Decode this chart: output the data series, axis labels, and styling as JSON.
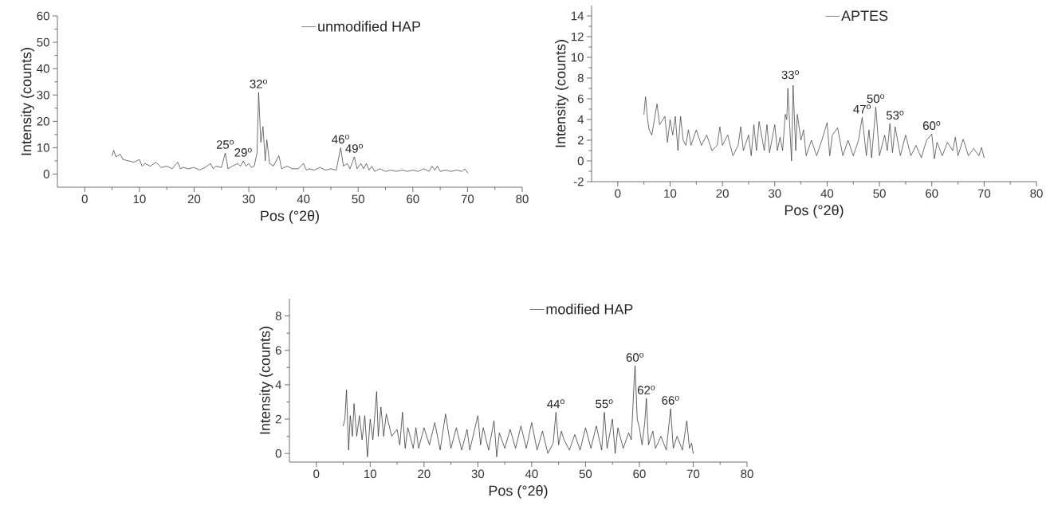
{
  "chart_data": [
    {
      "type": "line",
      "xlabel": "Pos (°2θ)",
      "ylabel": "Intensity (counts)",
      "legend": "top right",
      "xlim": [
        -5,
        80
      ],
      "xticks": [
        0,
        10,
        20,
        30,
        40,
        50,
        60,
        70,
        80
      ],
      "ylim": [
        -5,
        60
      ],
      "yticks": [
        0,
        10,
        20,
        30,
        40,
        50,
        60
      ],
      "x": [
        5,
        5.3,
        5.7,
        6.5,
        7,
        8,
        9,
        10,
        10.5,
        11,
        12,
        13,
        14,
        15,
        16,
        17,
        17.5,
        18,
        19,
        20,
        21,
        22,
        23,
        23.5,
        24,
        25,
        25.7,
        26.2,
        27,
        28,
        28.5,
        29,
        29.5,
        30,
        30.5,
        31,
        31.5,
        31.8,
        32.2,
        32.6,
        33,
        33.3,
        33.8,
        34.5,
        35.5,
        36,
        37,
        38,
        39,
        40,
        40.5,
        41,
        42,
        43,
        44,
        45,
        46,
        46.8,
        47.3,
        48,
        48.5,
        49.3,
        49.8,
        50.5,
        51,
        51.5,
        52,
        52.5,
        53,
        54,
        55,
        56,
        57,
        58,
        59,
        60,
        61,
        62,
        63,
        63.5,
        64,
        64.5,
        65,
        66,
        67,
        68,
        69,
        69.5,
        70
      ],
      "series": [
        {
          "name": "unmodified HAP",
          "color": "#333333",
          "values": [
            7,
            9,
            6.5,
            7.5,
            5.5,
            5,
            4.5,
            5.5,
            3,
            4,
            3,
            4.5,
            2.5,
            3,
            2,
            4.5,
            2,
            2.5,
            2,
            2.5,
            1.5,
            2.5,
            4,
            2,
            3,
            2.5,
            8,
            2,
            3,
            4,
            3,
            5,
            3,
            4,
            2.5,
            3,
            8,
            31,
            12,
            18,
            5,
            13,
            4,
            3,
            7,
            2,
            3,
            2,
            2,
            4,
            1.5,
            2,
            1.5,
            2.5,
            1.5,
            2,
            1.5,
            10,
            3,
            4,
            2,
            6.5,
            2,
            4,
            2,
            4,
            1.5,
            3,
            1,
            2,
            1,
            1.5,
            1,
            1.5,
            1,
            1.5,
            1,
            2,
            1,
            3,
            1.5,
            3,
            1,
            1.5,
            1,
            1.5,
            1,
            2,
            0.5
          ]
        }
      ],
      "annotations": [
        {
          "text": "25$^{o}$",
          "x": 25.7,
          "y": 8
        },
        {
          "text": "29$^{o}$",
          "x": 29,
          "y": 5
        },
        {
          "text": "32$^{o}$",
          "x": 31.8,
          "y": 31
        },
        {
          "text": "46$^{o}$",
          "x": 46.8,
          "y": 10
        },
        {
          "text": "49$^{o}$",
          "x": 49.3,
          "y": 6.5
        }
      ]
    },
    {
      "type": "line",
      "xlabel": "Pos (°2θ)",
      "ylabel": "Intensity (counts)",
      "legend": "top right",
      "xlim": [
        -5,
        80
      ],
      "xticks": [
        0,
        10,
        20,
        30,
        40,
        50,
        60,
        70,
        80
      ],
      "ylim": [
        -2,
        15
      ],
      "yticks": [
        -2,
        0,
        2,
        4,
        6,
        8,
        10,
        12,
        14
      ],
      "x": [
        5,
        5.3,
        5.7,
        6,
        6.5,
        7,
        7.5,
        8,
        9,
        9.5,
        10,
        10.5,
        11,
        11.5,
        12,
        12.5,
        13,
        13.5,
        14,
        15,
        16,
        17,
        18,
        19,
        19.5,
        20,
        21,
        22,
        23,
        23.5,
        24,
        25,
        25.5,
        26,
        26.5,
        27,
        28,
        28.5,
        29,
        30,
        30.5,
        31,
        31.5,
        32,
        32.3,
        32.5,
        33,
        33.2,
        33.5,
        34,
        34.3,
        35,
        35.5,
        36,
        37,
        38,
        39,
        40,
        40.5,
        41,
        42,
        43,
        44,
        45,
        46,
        46.7,
        47.5,
        48,
        48.5,
        49.3,
        50,
        51,
        51.5,
        52,
        52.5,
        53,
        54,
        55,
        56,
        57,
        58,
        59,
        60,
        60.5,
        61,
        62,
        63,
        64,
        64.5,
        65,
        66,
        67,
        68,
        69,
        69.5,
        70
      ],
      "series": [
        {
          "name": "APTES",
          "color": "#333333",
          "values": [
            4.5,
            6.2,
            4,
            3,
            2.5,
            4,
            5.5,
            3.5,
            4.3,
            1.8,
            4,
            2.5,
            4.3,
            1,
            4.3,
            2,
            1.5,
            3,
            1.5,
            3,
            1.5,
            2.5,
            1,
            1.5,
            3.3,
            1.5,
            2.5,
            0.5,
            1.5,
            3.3,
            1,
            2.5,
            0.5,
            3.5,
            1,
            3.8,
            1,
            3.5,
            0.8,
            3.5,
            1,
            2.3,
            1,
            4.5,
            4,
            7,
            2,
            0,
            7.3,
            1,
            4.5,
            2,
            3,
            0.5,
            2,
            0.5,
            2,
            3.7,
            0.5,
            2.5,
            3.2,
            0.5,
            2,
            0.5,
            2,
            4.2,
            0.5,
            3,
            0.3,
            5.2,
            0.5,
            2.5,
            1,
            3.6,
            0.8,
            3.3,
            0.5,
            2.5,
            0.5,
            1.5,
            0.3,
            2,
            2.6,
            0.2,
            1.8,
            0.5,
            1.8,
            1,
            2.3,
            0.5,
            2.1,
            0.5,
            1.2,
            0.5,
            1.3,
            0.3
          ]
        }
      ],
      "annotations": [
        {
          "text": "33$^{o}$",
          "x": 33,
          "y": 7.5
        },
        {
          "text": "47$^{o}$",
          "x": 46.7,
          "y": 4.2
        },
        {
          "text": "50$^{o}$",
          "x": 49.3,
          "y": 5.2
        },
        {
          "text": "53$^{o}$",
          "x": 53,
          "y": 3.6
        },
        {
          "text": "60$^{o}$",
          "x": 60,
          "y": 2.6
        }
      ]
    },
    {
      "type": "line",
      "xlabel": "Pos (°2θ)",
      "ylabel": "Intensity (counts)",
      "legend": "top right",
      "xlim": [
        -5,
        80
      ],
      "xticks": [
        0,
        10,
        20,
        30,
        40,
        50,
        60,
        70,
        80
      ],
      "ylim": [
        -0.5,
        9
      ],
      "yticks": [
        0,
        2,
        4,
        6,
        8
      ],
      "x": [
        5,
        5.3,
        5.6,
        6,
        6.3,
        6.7,
        7,
        7.5,
        8,
        8.5,
        9,
        9.5,
        10,
        10.5,
        11.2,
        11.5,
        12,
        12.5,
        13,
        14,
        15,
        15.5,
        16,
        16.5,
        17,
        18,
        18.5,
        19,
        20,
        21,
        22,
        23,
        24,
        25,
        26,
        27,
        28,
        28.5,
        30,
        30.5,
        31,
        32,
        33,
        33.5,
        34,
        35,
        36,
        37,
        38,
        39,
        40,
        41,
        42,
        43,
        44,
        44.5,
        45,
        45.5,
        46,
        47,
        48,
        49,
        50,
        51,
        52,
        53,
        53.5,
        54,
        55,
        55.5,
        56,
        57,
        58,
        58.5,
        59,
        59.2,
        59.6,
        60,
        60.5,
        61,
        61.3,
        61.7,
        62.5,
        63,
        64,
        65,
        65.8,
        66.3,
        67,
        68,
        68.8,
        69.3,
        69.7,
        70
      ],
      "series": [
        {
          "name": "modified HAP",
          "color": "#222222",
          "values": [
            1.6,
            2,
            3.7,
            0.2,
            2.2,
            1,
            2.9,
            1,
            2.2,
            0.8,
            2.2,
            -0.2,
            2,
            0.8,
            3.6,
            1,
            2.7,
            1,
            2.3,
            1,
            1.4,
            0.5,
            2.4,
            0.3,
            1.5,
            0.3,
            1.5,
            0.3,
            1.5,
            0.5,
            1.8,
            0.2,
            2.3,
            0.3,
            1.5,
            0.2,
            1.4,
            0.2,
            2.2,
            0.5,
            1.5,
            0.2,
            1.9,
            -0.2,
            1.2,
            0.3,
            1.4,
            0.3,
            1.6,
            0.3,
            1.8,
            0.2,
            1.3,
            0,
            0.6,
            2.4,
            0.5,
            1.3,
            0.8,
            0.2,
            1.1,
            0.2,
            1.5,
            0.3,
            1.6,
            0.2,
            2.4,
            0.3,
            2,
            0,
            1.5,
            0.3,
            1.2,
            0.8,
            4,
            5.1,
            2,
            1.5,
            0.5,
            1.8,
            3.2,
            0.5,
            1.3,
            0.3,
            1,
            0.2,
            2.6,
            0.3,
            1,
            0.2,
            1.9,
            0.3,
            0.6,
            0
          ]
        }
      ],
      "annotations": [
        {
          "text": "44$^{o}$",
          "x": 44.5,
          "y": 2.4
        },
        {
          "text": "55$^{o}$",
          "x": 53.5,
          "y": 2.4
        },
        {
          "text": "60$^{o}$",
          "x": 59.2,
          "y": 5.1
        },
        {
          "text": "62$^{o}$",
          "x": 61.3,
          "y": 3.2
        },
        {
          "text": "66$^{o}$",
          "x": 65.8,
          "y": 2.6
        }
      ]
    }
  ]
}
